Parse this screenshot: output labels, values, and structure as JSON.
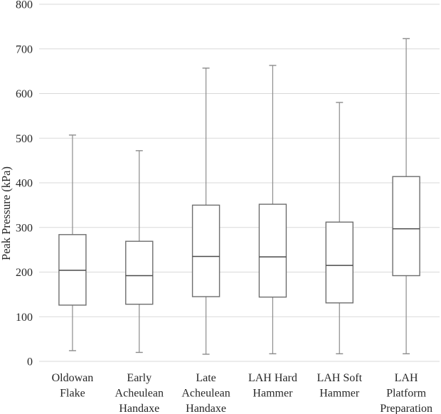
{
  "chart_data": {
    "type": "boxplot",
    "title": "",
    "xlabel": "",
    "ylabel": "Peak Pressure (kPa)",
    "ylim": [
      0,
      800
    ],
    "yticks": [
      0,
      100,
      200,
      300,
      400,
      500,
      600,
      700,
      800
    ],
    "grid": "horizontal",
    "legend": "none",
    "categories": [
      "Oldowan Flake",
      "Early Acheulean Handaxe",
      "Late Acheulean Handaxe",
      "LAH Hard Hammer",
      "LAH Soft Hammer",
      "LAH Platform Preparation"
    ],
    "category_label_lines": [
      [
        "Oldowan",
        "Flake"
      ],
      [
        "Early",
        "Acheulean",
        "Handaxe"
      ],
      [
        "Late",
        "Acheulean",
        "Handaxe"
      ],
      [
        "LAH Hard",
        "Hammer"
      ],
      [
        "LAH Soft",
        "Hammer"
      ],
      [
        "LAH",
        "Platform",
        "Preparation"
      ]
    ],
    "series": [
      {
        "name": "Oldowan Flake",
        "min": 24,
        "q1": 126,
        "median": 204,
        "q3": 284,
        "max": 507
      },
      {
        "name": "Early Acheulean Handaxe",
        "min": 20,
        "q1": 128,
        "median": 192,
        "q3": 269,
        "max": 472
      },
      {
        "name": "Late Acheulean Handaxe",
        "min": 16,
        "q1": 145,
        "median": 235,
        "q3": 350,
        "max": 657
      },
      {
        "name": "LAH Hard Hammer",
        "min": 17,
        "q1": 144,
        "median": 234,
        "q3": 352,
        "max": 663
      },
      {
        "name": "LAH Soft Hammer",
        "min": 17,
        "q1": 131,
        "median": 215,
        "q3": 312,
        "max": 580
      },
      {
        "name": "LAH Platform Preparation",
        "min": 17,
        "q1": 192,
        "median": 297,
        "q3": 414,
        "max": 723
      }
    ],
    "colors": {
      "background": "#ffffff",
      "gridline": "#d9d9d9",
      "box_stroke": "#6e6e6e",
      "box_fill": "#ffffff",
      "median_stroke": "#4a4a4a",
      "whisker_stroke": "#8c8c8c",
      "text": "#262626"
    }
  }
}
